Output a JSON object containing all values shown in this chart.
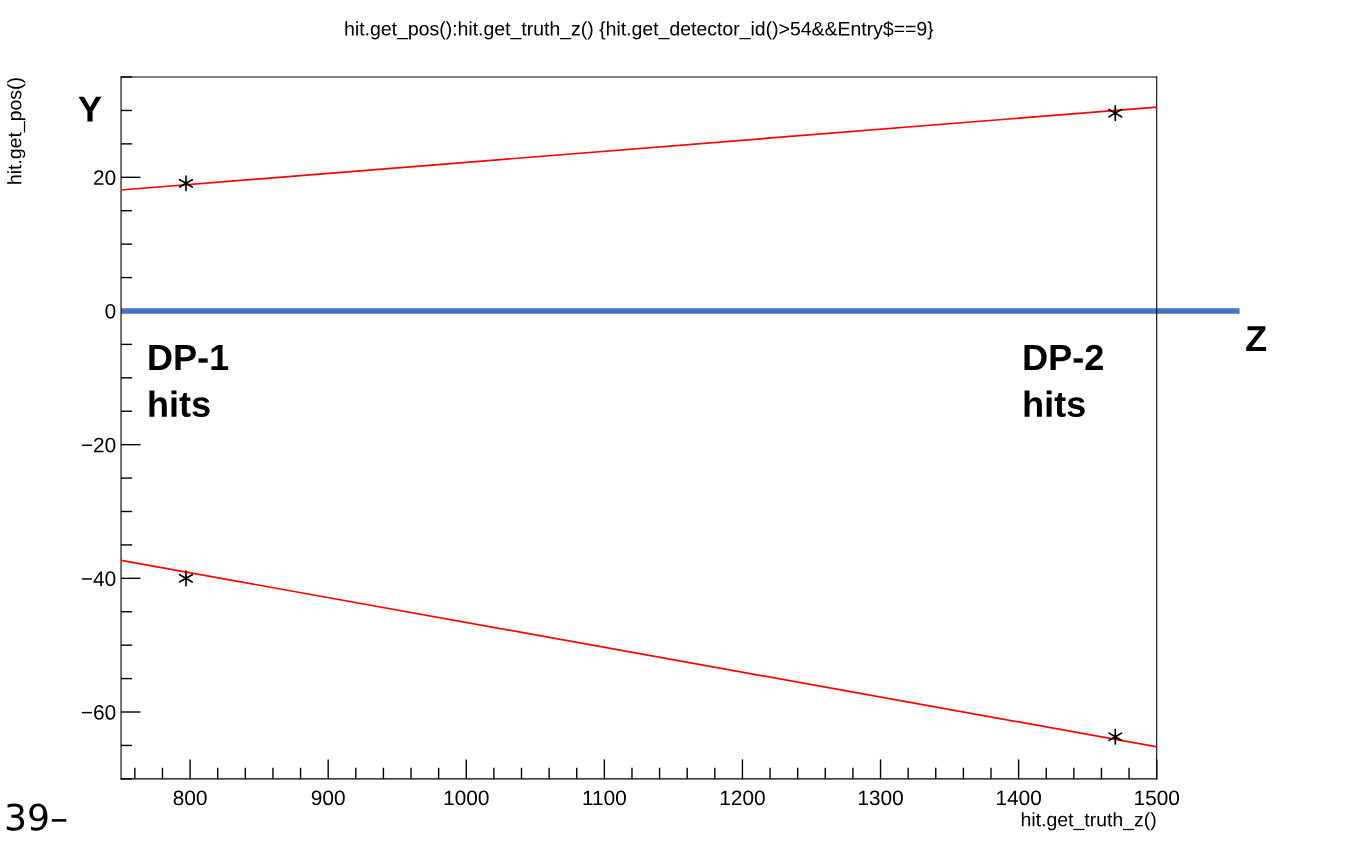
{
  "chart_data": {
    "type": "scatter",
    "title": "hit.get_pos():hit.get_truth_z() {hit.get_detector_id()>54&&Entry$==9}",
    "xlabel": "hit.get_truth_z()",
    "ylabel": "hit.get_pos()",
    "series": [
      {
        "color": "#000000",
        "marker": "cross",
        "x": [
          797,
          1470,
          797,
          1470
        ],
        "values": [
          19.1,
          29.6,
          -40.0,
          -63.7
        ]
      },
      {
        "type": "line",
        "marker": "none",
        "color": "#ff0000",
        "x": [
          750,
          1500
        ],
        "values": [
          18.1,
          30.5
        ]
      },
      {
        "type": "line",
        "marker": "none",
        "color": "#ff0000",
        "x": [
          750,
          1500
        ],
        "values": [
          -37.3,
          -65.2
        ]
      }
    ],
    "xlim": [
      750,
      1500
    ],
    "xticks": [
      800,
      900,
      1000,
      1100,
      1200,
      1300,
      1400,
      1500
    ],
    "ylim": [
      -70,
      35
    ],
    "yticks": [
      -60,
      -40,
      -20,
      0,
      20
    ],
    "ref_lines": [
      {
        "axis": "y",
        "value": 0,
        "label": "Z",
        "color": "#4472c4"
      }
    ],
    "annotations": [
      "Y",
      "DP-1\nhits",
      "DP-2\nhits",
      "39–"
    ],
    "grid": false,
    "legend": false
  }
}
